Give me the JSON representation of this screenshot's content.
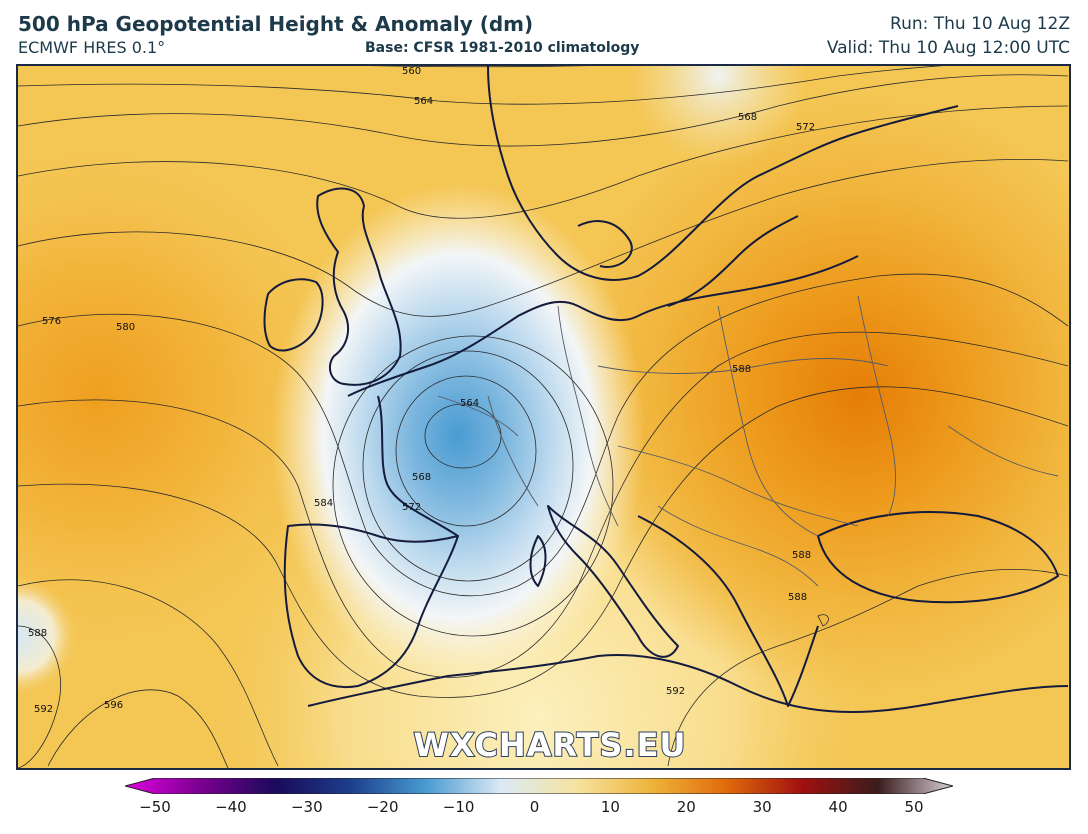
{
  "header": {
    "title": "500 hPa Geopotential Height & Anomaly (dm)",
    "model": "ECMWF HRES 0.1°",
    "base": "Base: CFSR 1981-2010 climatology",
    "run": "Run: Thu 10 Aug 12Z",
    "valid": "Valid: Thu 10 Aug 12:00 UTC"
  },
  "map": {
    "watermark": "WXCHARTS.EU",
    "contour_labels": [
      "560",
      "564",
      "568",
      "572",
      "576",
      "580",
      "584",
      "588",
      "592",
      "596",
      "564",
      "568",
      "572",
      "588",
      "588",
      "588",
      "592"
    ]
  },
  "colorbar": {
    "ticks": [
      "−50",
      "−40",
      "−30",
      "−20",
      "−10",
      "0",
      "10",
      "20",
      "30",
      "40",
      "50"
    ],
    "colors": [
      "#e000e0",
      "#7a0090",
      "#1a0a5a",
      "#1c3f8c",
      "#4a9bd2",
      "#dceaf5",
      "#f5e3a0",
      "#eeb43b",
      "#e06a0a",
      "#a01010",
      "#3a1c1c",
      "#d8d0d8"
    ]
  }
}
